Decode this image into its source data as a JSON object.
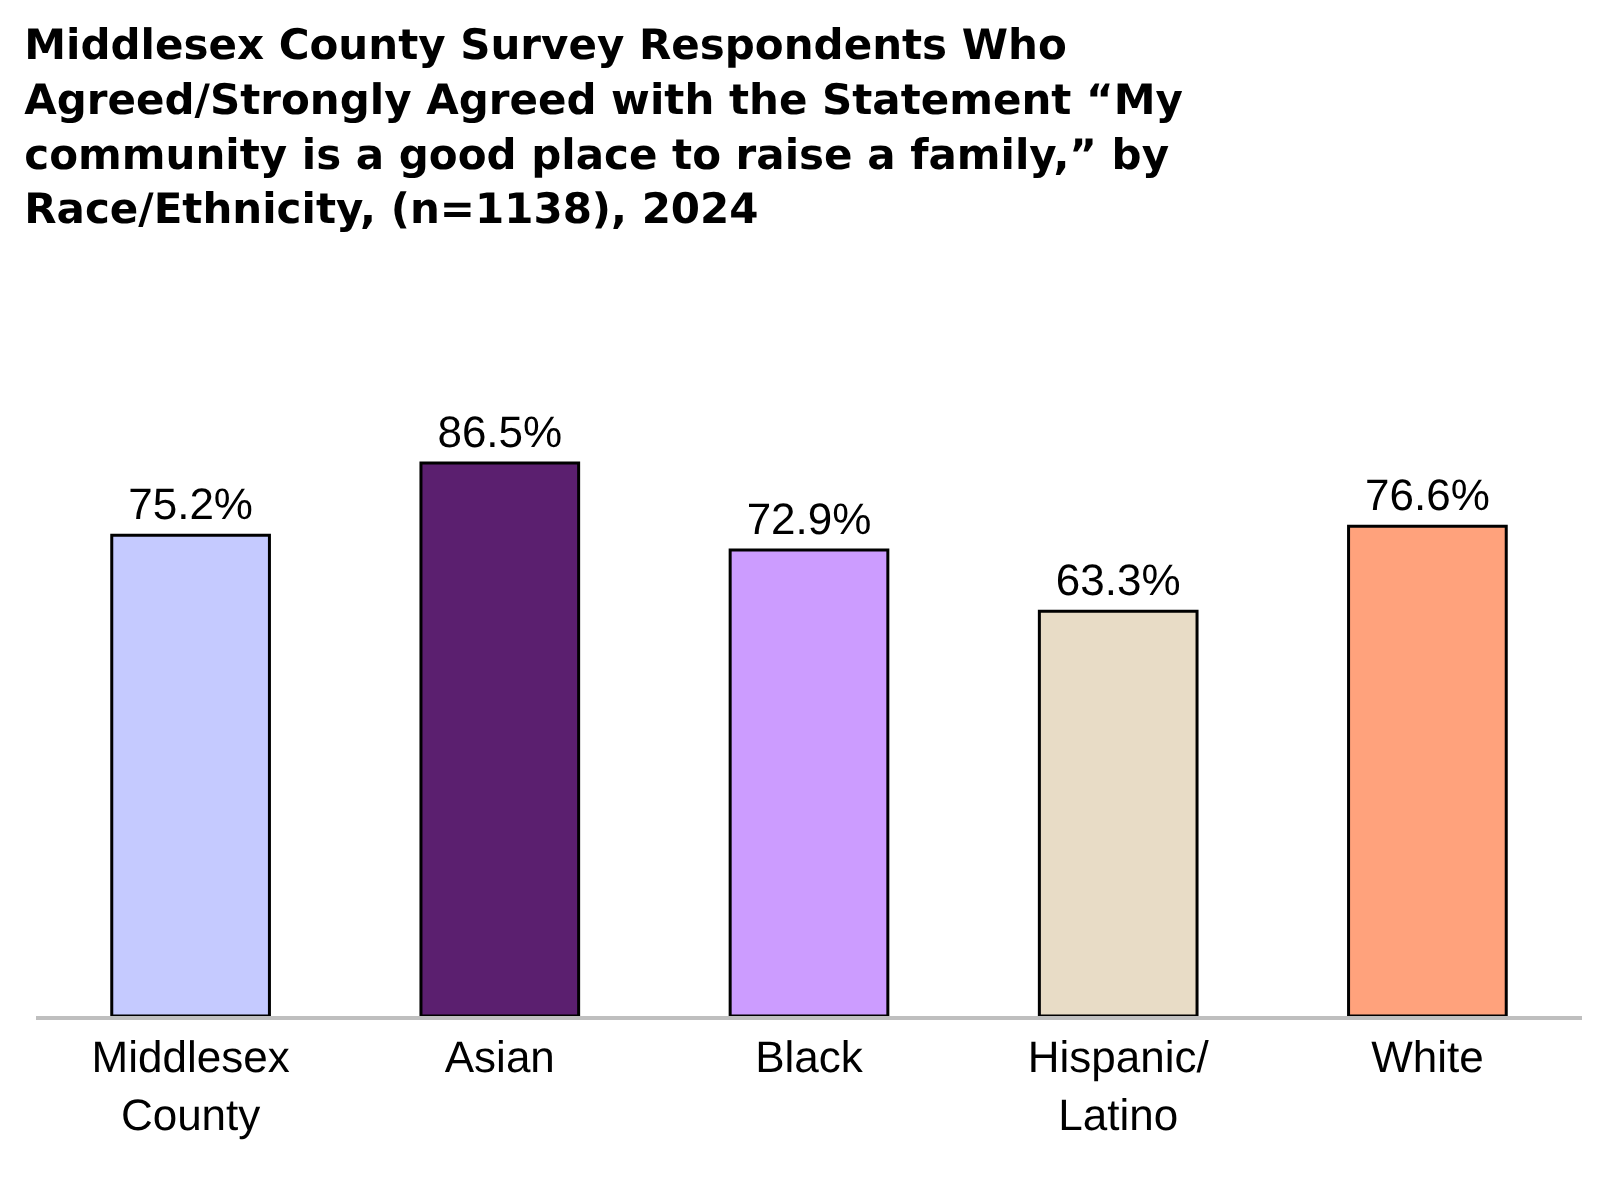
{
  "chart_data": {
    "type": "bar",
    "title": "Middlesex County Survey Respondents Who Agreed/Strongly Agreed with the Statement “My community is a good place to raise a family,” by Race/Ethnicity, (n=1138), 2024",
    "categories": [
      "Middlesex County",
      "Asian",
      "Black",
      "Hispanic/Latino",
      "White"
    ],
    "values": [
      75.2,
      86.5,
      72.9,
      63.3,
      76.6
    ],
    "value_labels": [
      "75.2%",
      "86.5%",
      "72.9%",
      "63.3%",
      "76.6%"
    ],
    "colors": [
      "#c5caff",
      "#5b1f6f",
      "#cc9cff",
      "#e8dcc6",
      "#ffa27c"
    ],
    "legend": false
  }
}
